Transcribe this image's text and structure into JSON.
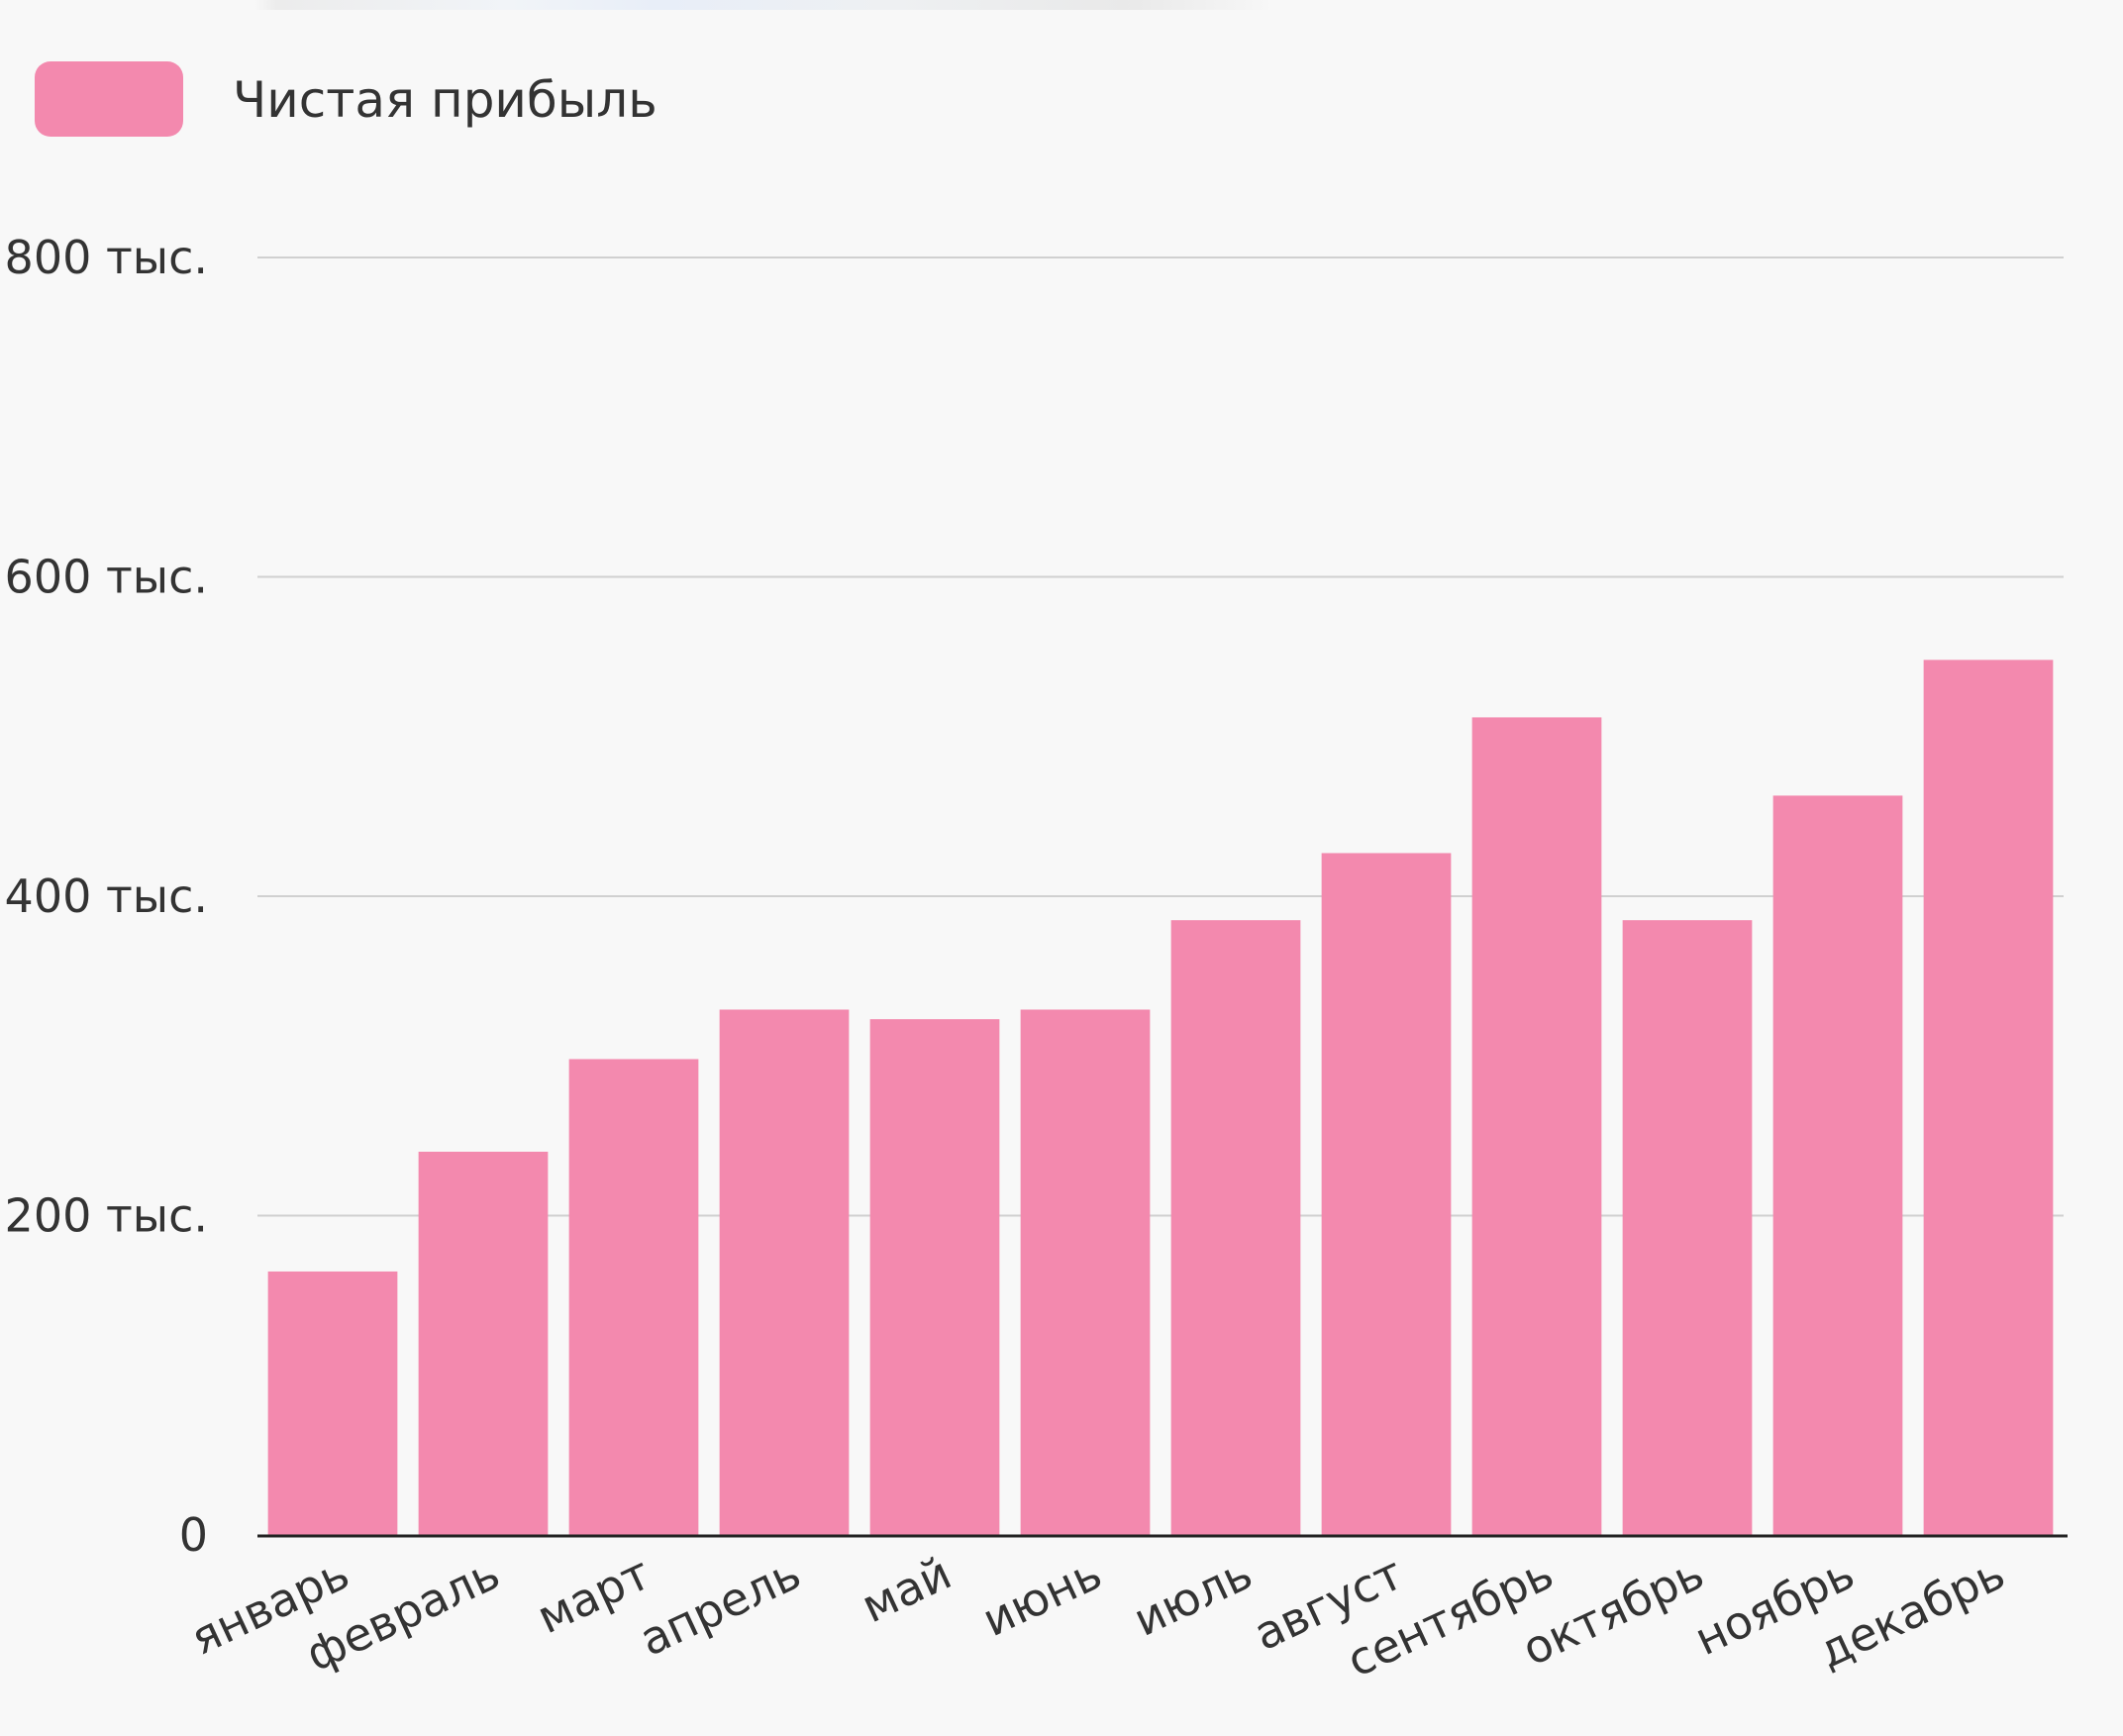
{
  "chart_data": {
    "type": "bar",
    "categories": [
      "январь",
      "февраль",
      "март",
      "апрель",
      "май",
      "июнь",
      "июль",
      "август",
      "сентябрь",
      "октябрь",
      "ноябрь",
      "декабрь"
    ],
    "series": [
      {
        "name": "Чистая прибыль",
        "color": "#f389ae",
        "values": [
          165000,
          240000,
          298000,
          329000,
          323000,
          329000,
          385000,
          427000,
          512000,
          385000,
          463000,
          548000
        ]
      }
    ],
    "ylim": [
      0,
      800000
    ],
    "yticks": [
      0,
      200000,
      400000,
      600000,
      800000
    ],
    "ytick_labels": [
      "0",
      "200 тыс.",
      "400 тыс.",
      "600 тыс.",
      "800 тыс."
    ],
    "grid": true,
    "legend_position": "top-left",
    "title": "",
    "xlabel": "",
    "ylabel": ""
  },
  "colors": {
    "background": "#f8f8f8",
    "bar": "#f389ae",
    "grid": "#d0d0d0",
    "axis": "#222222",
    "text": "#333333"
  }
}
